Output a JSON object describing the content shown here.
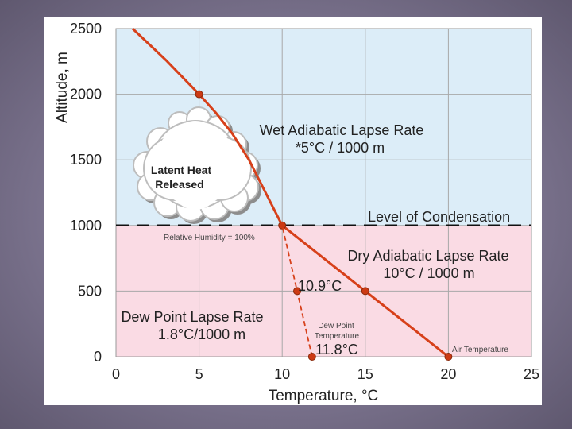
{
  "chart_data": {
    "type": "line",
    "title": "",
    "xlabel": "Temperature, °C",
    "ylabel": "Altitude, m",
    "xlim": [
      0,
      25
    ],
    "ylim": [
      0,
      2500
    ],
    "x_ticks": [
      "0",
      "5",
      "10",
      "15",
      "20",
      "25"
    ],
    "y_ticks": [
      "0",
      "500",
      "1000",
      "1500",
      "2000",
      "2500"
    ],
    "grid": true,
    "colors": {
      "wet_zone": "#dcedf8",
      "dry_zone": "#fadbe4",
      "line": "#d7401a",
      "marker": "#cc3a14"
    },
    "series": [
      {
        "name": "Air Temperature",
        "style": "solid",
        "points": [
          [
            20,
            0
          ],
          [
            15,
            500
          ],
          [
            10,
            1000
          ],
          [
            9,
            1250
          ],
          [
            8,
            1500
          ],
          [
            7,
            1700
          ],
          [
            6,
            1860
          ],
          [
            5,
            2000
          ],
          [
            3,
            2260
          ],
          [
            1,
            2500
          ]
        ],
        "markers": [
          [
            20,
            0
          ],
          [
            15,
            500
          ],
          [
            10,
            1000
          ],
          [
            5,
            2000
          ]
        ]
      },
      {
        "name": "Dew Point Temperature",
        "style": "dashed",
        "points": [
          [
            11.8,
            0
          ],
          [
            10.9,
            500
          ],
          [
            10,
            1000
          ]
        ],
        "markers": [
          [
            11.8,
            0
          ],
          [
            10.9,
            500
          ]
        ]
      }
    ],
    "condensation_level": 1000,
    "annotations": {
      "wet_title": "Wet Adiabatic Lapse Rate",
      "wet_rate": "*5°C / 1000 m",
      "condensation": "Level of Condensation",
      "humidity": "Relative Humidity = 100%",
      "dry_title": "Dry Adiabatic Lapse Rate",
      "dry_rate": "10°C / 1000 m",
      "dew_title": "Dew Point Lapse Rate",
      "dew_rate": "1.8°C/1000 m",
      "dew_label_1": "Dew Point",
      "dew_label_2": "Temperature",
      "air_label": "Air Temperature",
      "temp_500": "10.9°C",
      "temp_0": "11.8°C",
      "cloud_line_1": "Latent Heat",
      "cloud_line_2": "Released"
    }
  }
}
